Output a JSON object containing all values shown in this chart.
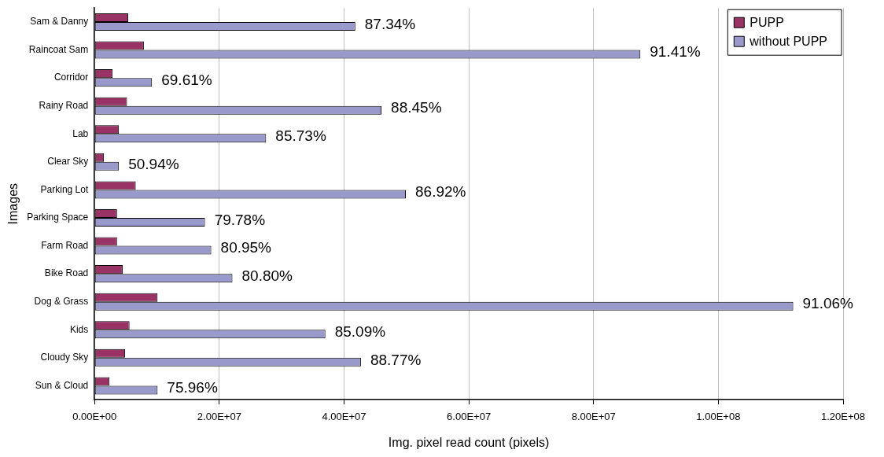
{
  "chart_data": {
    "type": "bar",
    "orientation": "horizontal",
    "xlabel": "Img. pixel read count (pixels)",
    "ylabel": "Images",
    "categories": [
      "Sam & Danny",
      "Raincoat Sam",
      "Corridor",
      "Rainy Road",
      "Lab",
      "Clear Sky",
      "Parking Lot",
      "Parking Space",
      "Farm Road",
      "Bike Road",
      "Dog & Grass",
      "Kids",
      "Cloudy Sky",
      "Sun & Cloud"
    ],
    "series": [
      {
        "name": "PUPP",
        "color": "#993366",
        "values": [
          5400000,
          7900000,
          2900000,
          5200000,
          3900000,
          1500000,
          6600000,
          3600000,
          3600000,
          4500000,
          10100000,
          5600000,
          4900000,
          2400000
        ]
      },
      {
        "name": "without PUPP",
        "color": "#9999cc",
        "values": [
          41800000,
          87500000,
          9200000,
          46000000,
          27500000,
          3900000,
          49900000,
          17700000,
          18700000,
          22100000,
          112000000,
          37000000,
          42700000,
          10100000
        ]
      }
    ],
    "xlim": [
      0,
      120000000
    ],
    "xticks": [
      {
        "value": 0,
        "label": "0.00E+00"
      },
      {
        "value": 20000000,
        "label": "2.00E+07"
      },
      {
        "value": 40000000,
        "label": "4.00E+07"
      },
      {
        "value": 60000000,
        "label": "6.00E+07"
      },
      {
        "value": 80000000,
        "label": "8.00E+07"
      },
      {
        "value": 100000000,
        "label": "1.00E+08"
      },
      {
        "value": 120000000,
        "label": "1.20E+08"
      }
    ],
    "annotations": [
      {
        "text": "87.34%",
        "x": 41800000,
        "y": "Sam & Danny"
      },
      {
        "text": "91.41%",
        "x": 87500000,
        "y": "Raincoat Sam"
      },
      {
        "text": "69.61%",
        "x": 9200000,
        "y": "Corridor"
      },
      {
        "text": "88.45%",
        "x": 46000000,
        "y": "Rainy Road"
      },
      {
        "text": "85.73%",
        "x": 27500000,
        "y": "Lab"
      },
      {
        "text": "50.94%",
        "x": 3900000,
        "y": "Clear Sky"
      },
      {
        "text": "86.92%",
        "x": 49900000,
        "y": "Parking Lot"
      },
      {
        "text": "79.78%",
        "x": 17700000,
        "y": "Parking Space"
      },
      {
        "text": "80.95%",
        "x": 18700000,
        "y": "Farm Road"
      },
      {
        "text": "80.80%",
        "x": 22100000,
        "y": "Bike Road"
      },
      {
        "text": "91.06%",
        "x": 112000000,
        "y": "Dog & Grass"
      },
      {
        "text": "85.09%",
        "x": 37000000,
        "y": "Kids"
      },
      {
        "text": "88.77%",
        "x": 42700000,
        "y": "Cloudy Sky"
      },
      {
        "text": "75.96%",
        "x": 10100000,
        "y": "Sun & Cloud"
      }
    ],
    "grid": "x",
    "legend": "top right"
  }
}
